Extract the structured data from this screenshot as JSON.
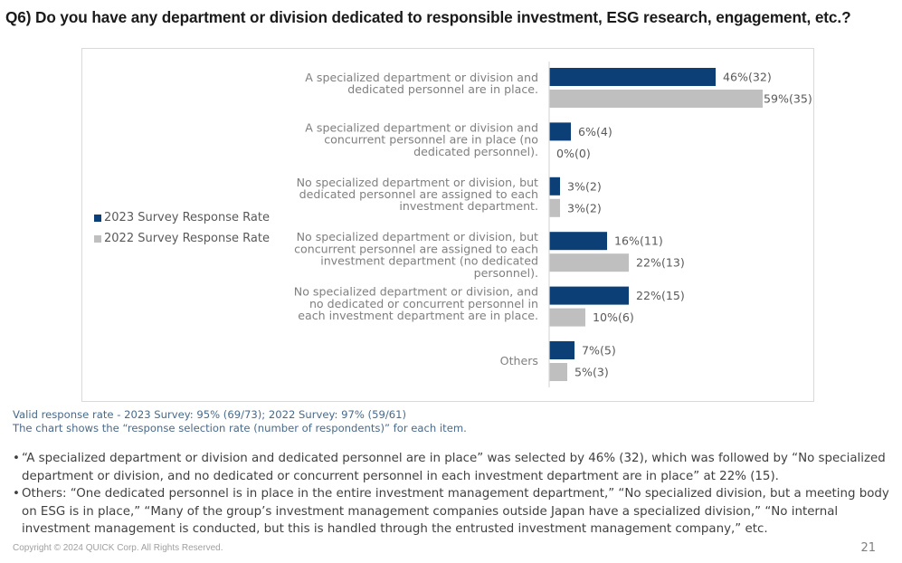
{
  "page": {
    "title": "Q6) Do you have any department or division dedicated to responsible investment, ESG research, engagement, etc.?",
    "notes": [
      "Valid response rate - 2023 Survey: 95% (69/73); 2022 Survey: 97% (59/61)",
      "The chart shows the “response selection rate (number of respondents)” for each item."
    ],
    "bullets": [
      "“A specialized department or division and dedicated personnel are in place” was selected by 46% (32), which was followed by “No specialized department or division, and no dedicated or concurrent personnel in each investment department are in place” at 22% (15).",
      "Others: “One dedicated personnel is in place in the entire investment management department,” “No specialized division, but a meeting body on ESG is in place,” “Many of the group’s investment management companies outside Japan have a specialized division,” “No internal investment management is conducted, but this is handled through the entrusted investment management company,” etc."
    ],
    "bullet_glyph": "•",
    "copyright": "Copyright © 2024 QUICK Corp. All Rights Reserved.",
    "page_number": "21"
  },
  "chart_data": {
    "type": "bar",
    "orientation": "horizontal",
    "title": "",
    "xlabel": "",
    "ylabel": "",
    "xlim": [
      0,
      60
    ],
    "grid": false,
    "legend_position": "left",
    "categories": [
      [
        "A specialized department or division and",
        "dedicated personnel are in place."
      ],
      [
        "A specialized department or division and",
        "concurrent personnel are in place (no",
        "dedicated personnel)."
      ],
      [
        "No specialized department or division, but",
        "dedicated personnel are assigned to each",
        "investment department."
      ],
      [
        "No specialized department or division, but",
        "concurrent personnel are assigned to each",
        "investment department (no dedicated",
        "personnel)."
      ],
      [
        "No specialized department or division, and",
        "no dedicated or concurrent personnel in",
        "each investment department are in place."
      ],
      [
        "Others"
      ]
    ],
    "series": [
      {
        "name": "2023 Survey Response Rate",
        "color": "#0b3f75",
        "values": [
          46,
          6,
          3,
          16,
          22,
          7
        ],
        "counts": [
          32,
          4,
          2,
          11,
          15,
          5
        ],
        "labels": [
          "46%(32)",
          "6%(4)",
          "3%(2)",
          "16%(11)",
          "22%(15)",
          "7%(5)"
        ]
      },
      {
        "name": "2022 Survey Response Rate",
        "color": "#bfbfbf",
        "values": [
          59,
          0,
          3,
          22,
          10,
          5
        ],
        "counts": [
          35,
          0,
          2,
          13,
          6,
          3
        ],
        "labels": [
          "59%(35)",
          "0%(0)",
          "3%(2)",
          "22%(13)",
          "10%(6)",
          "5%(3)"
        ]
      }
    ]
  }
}
